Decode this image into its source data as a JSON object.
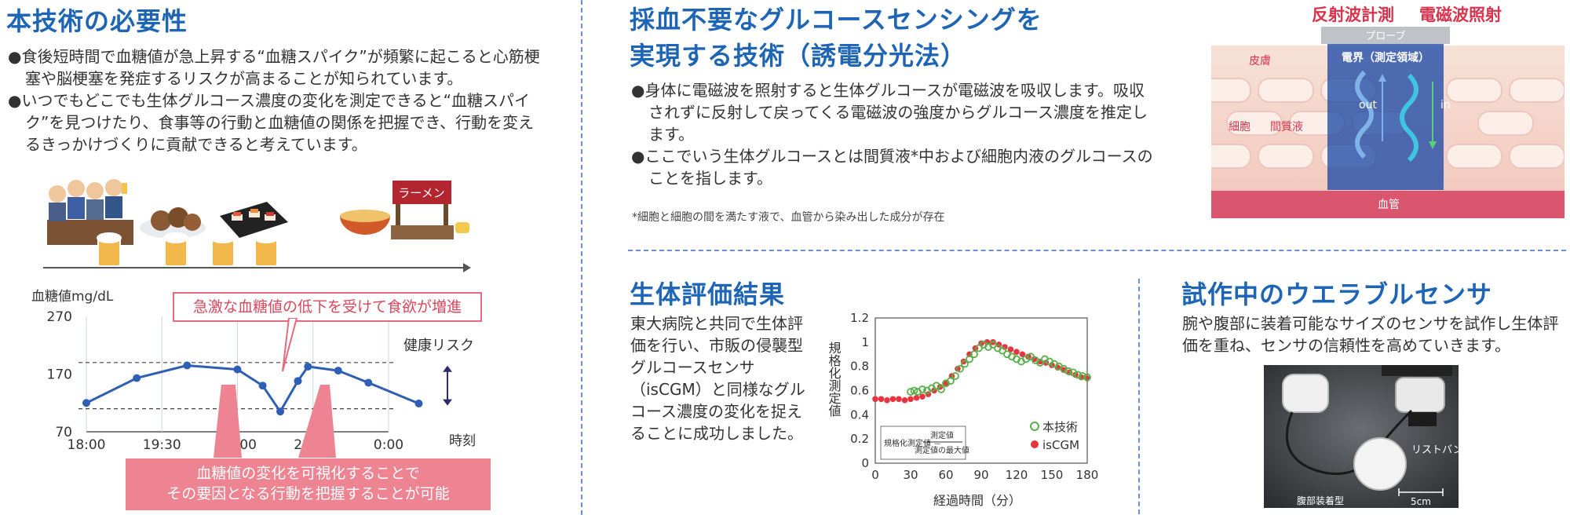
{
  "left": {
    "title": "本技術の必要性",
    "bullets": [
      "●食後短時間で血糖値が急上昇する“血糖スパイク”が頻繁に起こると心筋梗塞や脳梗塞を発症するリスクが高まることが知られています。",
      "●いつでもどこでも生体グルコース濃度の変化を測定できると“血糖スパイク”を見つけたり、食事等の行動と血糖値の関係を把握でき、行動を変えるきっかけづくりに貢献できると考えています。"
    ],
    "illus_noodle_sign": "ラーメン",
    "chart_ylabel": "血糖値mg/dL",
    "chart_xunit": "時刻",
    "callout_top": "急激な血糖値の低下を受けて食欲が増進",
    "risk_label": "健康リスク",
    "callout_bottom": [
      "血糖値の変化を可視化することで",
      "その要因となる行動を把握することが可能"
    ]
  },
  "center": {
    "title": [
      "採血不要なグルコースセンシングを",
      "実現する技術（誘電分光法）"
    ],
    "bullets": [
      "●身体に電磁波を照射すると生体グルコースが電磁波を吸収します。吸収されずに反射して戻ってくる電磁波の強度からグルコース濃度を推定します。",
      "●ここでいう生体グルコースとは間質液*中および細胞内液のグルコースのことを指します。"
    ],
    "footnote": "*細胞と細胞の間を満たす液で、血管から染み出した成分が存在"
  },
  "diagram": {
    "label_reflect": "反射波計測",
    "label_emit": "電磁波照射",
    "probe": "プローブ",
    "field": "電界（測定領域）",
    "skin": "皮膚",
    "cell": "細胞",
    "interstitial": "間質液",
    "out": "out",
    "in": "in",
    "vessel": "血管"
  },
  "eval": {
    "title": "生体評価結果",
    "text": "東大病院と共同で生体評価を行い、市販の侵襲型グルコースセンサ（isCGM）と同様なグルコース濃度の変化を捉えることに成功しました。"
  },
  "wear": {
    "title": "試作中のウエラブルセンサ",
    "text": "腕や腹部に装着可能なサイズのセンサを試作し生体評価を重ね、センサの信頼性を高めていきます。",
    "photo_label_wrist": "リストバンド型",
    "photo_label_abdomen": "腹部装着型",
    "photo_scale": "5cm"
  },
  "chart_data": [
    {
      "type": "line",
      "ylabel": "血糖値mg/dL",
      "xlabel": "時刻",
      "y_ticks": [
        "270",
        "170",
        "70"
      ],
      "x_ticks": [
        "18:00",
        "19:30",
        "21:00",
        "22:30",
        "0:00"
      ],
      "ylim": [
        70,
        270
      ],
      "x": [
        0,
        1,
        2,
        3,
        3.5,
        3.85,
        4.2,
        4.4,
        5,
        5.6,
        6.6
      ],
      "x_scale_note": "hours after 18:00",
      "values": [
        120,
        163,
        185,
        178,
        150,
        105,
        158,
        183,
        176,
        155,
        119
      ],
      "risk_band": [
        110,
        190
      ],
      "threshold_lines": [
        190,
        110
      ]
    },
    {
      "type": "scatter",
      "ylabel": "規格化測定値",
      "xlabel": "経過時間（分）",
      "xlim": [
        0,
        180
      ],
      "ylim": [
        0,
        1.2
      ],
      "x_ticks": [
        "0",
        "30",
        "60",
        "90",
        "120",
        "150",
        "180"
      ],
      "y_ticks": [
        "0",
        "0.2",
        "0.4",
        "0.6",
        "0.8",
        "1",
        "1.2"
      ],
      "formula_left": "規格化測定値 ＝",
      "formula_num": "測定値",
      "formula_den": "測定値の最大値",
      "series": [
        {
          "name": "本技術",
          "color": "#58b04a",
          "marker": "open-circle",
          "x": [
            30,
            33,
            36,
            40,
            44,
            48,
            52,
            56,
            60,
            64,
            68,
            72,
            76,
            80,
            84,
            88,
            92,
            96,
            100,
            104,
            108,
            112,
            116,
            120,
            124,
            128,
            132,
            136,
            140,
            144,
            148,
            152,
            156,
            160,
            164,
            168,
            172,
            176,
            180
          ],
          "values": [
            0.59,
            0.6,
            0.59,
            0.61,
            0.6,
            0.62,
            0.64,
            0.61,
            0.66,
            0.68,
            0.72,
            0.78,
            0.82,
            0.86,
            0.9,
            0.95,
            0.98,
            0.96,
            0.98,
            0.95,
            0.93,
            0.9,
            0.88,
            0.86,
            0.84,
            0.86,
            0.88,
            0.85,
            0.83,
            0.86,
            0.84,
            0.82,
            0.8,
            0.78,
            0.76,
            0.75,
            0.73,
            0.72,
            0.71
          ]
        },
        {
          "name": "isCGM",
          "color": "#e8343e",
          "marker": "filled-circle",
          "x": [
            0,
            5,
            10,
            15,
            20,
            25,
            30,
            35,
            40,
            45,
            50,
            55,
            60,
            65,
            70,
            75,
            80,
            85,
            90,
            95,
            100,
            105,
            110,
            115,
            120,
            125,
            130,
            135,
            140,
            145,
            150,
            155,
            160,
            165,
            170,
            175,
            180
          ],
          "values": [
            0.53,
            0.53,
            0.52,
            0.53,
            0.53,
            0.52,
            0.53,
            0.54,
            0.55,
            0.57,
            0.6,
            0.63,
            0.66,
            0.72,
            0.78,
            0.84,
            0.9,
            0.95,
            0.99,
            1.0,
            1.0,
            0.98,
            0.96,
            0.94,
            0.92,
            0.9,
            0.88,
            0.86,
            0.84,
            0.83,
            0.81,
            0.79,
            0.77,
            0.75,
            0.73,
            0.71,
            0.7
          ]
        }
      ]
    }
  ]
}
